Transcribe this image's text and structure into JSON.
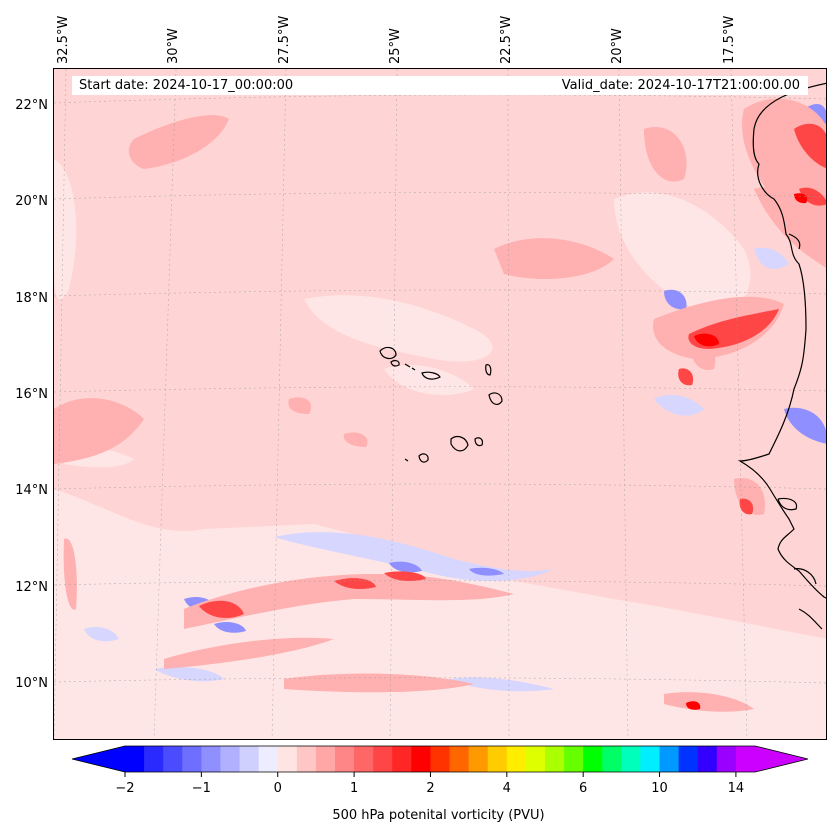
{
  "map": {
    "start_date": "Start date: 2024-10-17_00:00:00",
    "valid_date": "Valid_date: 2024-10-17T21:00:00.00",
    "longitude_labels": [
      "32.5°W",
      "30°W",
      "27.5°W",
      "25°W",
      "22.5°W",
      "20°W",
      "17.5°W"
    ],
    "latitude_labels": [
      "22°N",
      "20°N",
      "18°N",
      "16°N",
      "14°N",
      "12°N",
      "10°N"
    ],
    "extent": {
      "lon_min": -32.7,
      "lon_max": -15.2,
      "lat_min": 8.9,
      "lat_max": 22.8
    },
    "gridlines": true,
    "field": "500 hPa potential vorticity",
    "land_outline": "West African coast (Mauritania, Senegal, Gambia, Guinea-Bissau) and Cape Verde islands"
  },
  "colorbar": {
    "label": "500 hPa potenital vorticity (PVU)",
    "tick_labels": [
      "−2",
      "−1",
      "0",
      "1",
      "2",
      "4",
      "6",
      "10",
      "14"
    ],
    "tick_values": [
      -2,
      -1,
      0,
      1,
      2,
      4,
      6,
      10,
      14
    ],
    "extend": "both",
    "colors": [
      "#0000ff",
      "#2a2aff",
      "#4c4cff",
      "#6f6fff",
      "#8f8fff",
      "#b0b0ff",
      "#d0d0ff",
      "#ededff",
      "#ffe4e4",
      "#ffc6c6",
      "#ffa6a6",
      "#ff8686",
      "#ff6666",
      "#ff4646",
      "#ff2626",
      "#ff0000",
      "#ff3300",
      "#ff6600",
      "#ff9900",
      "#ffcc00",
      "#ffee00",
      "#ddff00",
      "#aaff00",
      "#66ff00",
      "#00ff00",
      "#00ff66",
      "#00ffbb",
      "#00eeff",
      "#0099ff",
      "#0033ff",
      "#3300ff",
      "#9900ff",
      "#cc00ff"
    ],
    "under_color": "#0000ff",
    "over_color": "#cc00ff"
  }
}
